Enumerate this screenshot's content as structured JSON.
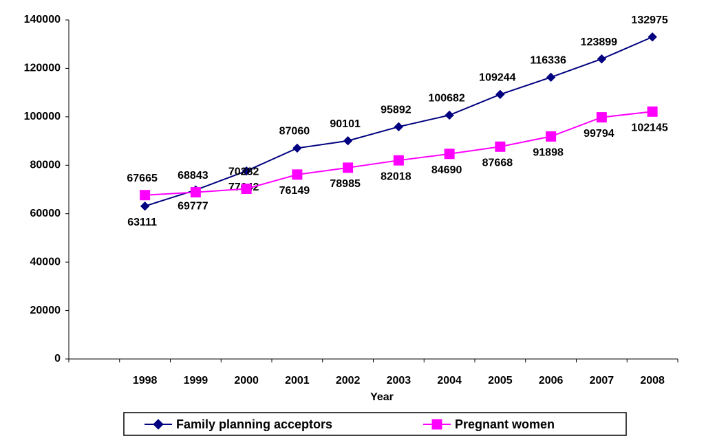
{
  "chart_data": {
    "type": "line",
    "x_label": "Year",
    "categories": [
      null,
      "1998",
      "1999",
      "2000",
      "2001",
      "2002",
      "2003",
      "2004",
      "2005",
      "2006",
      "2007",
      "2008"
    ],
    "series": [
      {
        "name": "Family planning acceptors",
        "color": "#000080",
        "marker": "diamond",
        "values": [
          null,
          63111,
          69777,
          77642,
          87060,
          90101,
          95892,
          100682,
          109244,
          116336,
          123899,
          132975
        ]
      },
      {
        "name": "Pregnant women",
        "color": "#ff00ff",
        "marker": "square",
        "values": [
          null,
          67665,
          68843,
          70282,
          76149,
          78985,
          82018,
          84690,
          87668,
          91898,
          99794,
          102145
        ]
      }
    ],
    "ylim": [
      0,
      140000
    ],
    "yticks": [
      0,
      20000,
      40000,
      60000,
      80000,
      100000,
      120000,
      140000
    ],
    "grid": false,
    "legend": "bottom"
  }
}
